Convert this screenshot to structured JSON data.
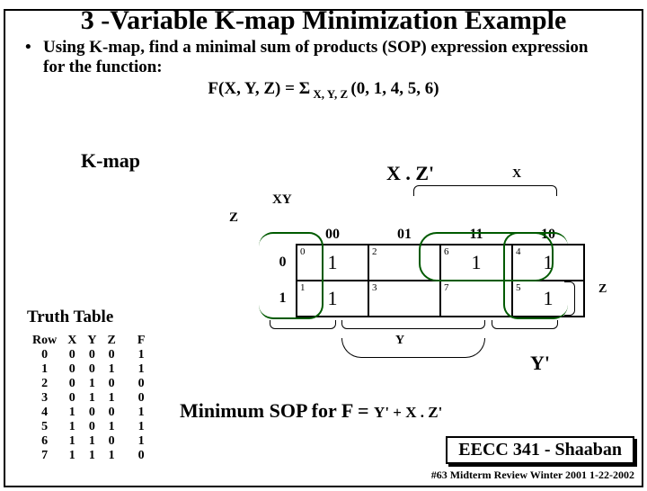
{
  "title": "3 -Variable K-map Minimization Example",
  "bullet": "Using K-map,  find a minimal sum of products (SOP) expression expression for the function:",
  "func": {
    "lhs": "F(X, Y, Z) = ",
    "sigma": "Σ",
    "sub": " X, Y, Z ",
    "args": "(0, 1, 4, 5, 6)"
  },
  "labels": {
    "kmap": "K-map",
    "xz": "X . Z'",
    "x": "X",
    "xy": "XY",
    "z": "Z",
    "y": "Y",
    "yprime": "Y'",
    "zside": "Z"
  },
  "kmap": {
    "cols": [
      "00",
      "01",
      "11",
      "10"
    ],
    "rows": [
      "0",
      "1"
    ],
    "cells": [
      [
        {
          "idx": "0",
          "v": "1"
        },
        {
          "idx": "2",
          "v": ""
        },
        {
          "idx": "6",
          "v": "1"
        },
        {
          "idx": "4",
          "v": "1"
        }
      ],
      [
        {
          "idx": "1",
          "v": "1"
        },
        {
          "idx": "3",
          "v": ""
        },
        {
          "idx": "7",
          "v": ""
        },
        {
          "idx": "5",
          "v": "1"
        }
      ]
    ]
  },
  "truth": {
    "title": "Truth Table",
    "headers": [
      "Row",
      "X",
      "Y",
      "Z",
      "F"
    ],
    "rows": [
      [
        "0",
        "0",
        "0",
        "0",
        "1"
      ],
      [
        "1",
        "0",
        "0",
        "1",
        "1"
      ],
      [
        "2",
        "0",
        "1",
        "0",
        "0"
      ],
      [
        "3",
        "0",
        "1",
        "1",
        "0"
      ],
      [
        "4",
        "1",
        "0",
        "0",
        "1"
      ],
      [
        "5",
        "1",
        "0",
        "1",
        "1"
      ],
      [
        "6",
        "1",
        "1",
        "0",
        "1"
      ],
      [
        "7",
        "1",
        "1",
        "1",
        "0"
      ]
    ]
  },
  "minsop": {
    "lhs": "Minimum SOP for  F  =  ",
    "rhs": "Y' + X . Z'"
  },
  "footer": {
    "box": "EECC 341 - Shaaban",
    "line": "#63   Midterm Review   Winter 2001  1-22-2002"
  },
  "colors": {
    "oval": "#005a00",
    "text": "#000000",
    "bg": "#ffffff"
  }
}
